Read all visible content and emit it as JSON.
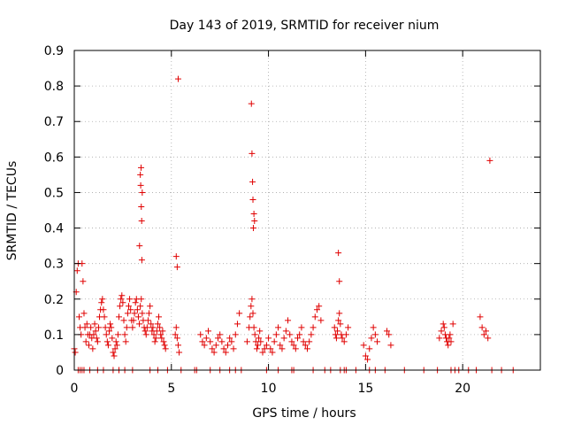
{
  "chart_data": {
    "type": "scatter",
    "title": "Day 143 of 2019, SRMTID for receiver nium",
    "xlabel": "GPS time / hours",
    "ylabel": "SRMTID / TECUs",
    "xlim": [
      0,
      24
    ],
    "ylim": [
      0,
      0.9
    ],
    "x_ticks": [
      0,
      5,
      10,
      15,
      20
    ],
    "y_ticks": [
      0,
      0.1,
      0.2,
      0.3,
      0.4,
      0.5,
      0.6,
      0.7,
      0.8,
      0.9
    ],
    "x_tick_labels": [
      "0",
      "5",
      "10",
      "15",
      "20"
    ],
    "y_tick_labels": [
      "0",
      "0.1",
      "0.2",
      "0.3",
      "0.4",
      "0.5",
      "0.6",
      "0.7",
      "0.8",
      "0.9"
    ],
    "grid": true,
    "marker": "+",
    "series": [
      {
        "name": "SRMTID",
        "color": "#e00000",
        "x": [
          0.0,
          0.05,
          0.1,
          0.15,
          0.2,
          0.25,
          0.3,
          0.35,
          0.4,
          0.45,
          0.5,
          0.55,
          0.6,
          0.65,
          0.7,
          0.75,
          0.8,
          0.85,
          0.9,
          0.95,
          1.0,
          1.05,
          1.1,
          1.15,
          1.2,
          1.25,
          1.3,
          1.35,
          1.4,
          1.45,
          1.5,
          1.55,
          1.6,
          1.65,
          1.7,
          1.75,
          1.8,
          1.85,
          1.9,
          1.95,
          2.0,
          2.05,
          2.1,
          2.15,
          2.2,
          2.25,
          2.3,
          2.35,
          2.4,
          2.45,
          2.5,
          2.55,
          2.6,
          2.65,
          2.7,
          2.75,
          2.8,
          2.85,
          2.9,
          2.95,
          3.0,
          3.05,
          3.1,
          3.15,
          3.2,
          3.25,
          3.3,
          3.35,
          3.4,
          3.45,
          3.5,
          3.55,
          3.6,
          3.65,
          3.7,
          3.75,
          3.8,
          3.85,
          3.9,
          3.95,
          4.0,
          4.05,
          4.1,
          4.15,
          4.2,
          4.25,
          4.3,
          4.35,
          4.4,
          4.45,
          4.5,
          4.55,
          4.6,
          4.65,
          4.7,
          5.2,
          5.25,
          5.3,
          5.35,
          5.4,
          6.5,
          6.6,
          6.7,
          6.8,
          6.9,
          7.0,
          7.1,
          7.2,
          7.3,
          7.4,
          7.5,
          7.6,
          7.7,
          7.8,
          7.9,
          8.0,
          8.1,
          8.2,
          8.3,
          8.4,
          8.5,
          8.9,
          9.0,
          9.05,
          9.1,
          9.15,
          9.2,
          9.25,
          9.3,
          9.35,
          9.4,
          9.45,
          9.5,
          9.55,
          9.6,
          9.7,
          9.8,
          9.9,
          10.0,
          10.1,
          10.2,
          10.3,
          10.4,
          10.5,
          10.6,
          10.7,
          10.8,
          10.9,
          11.0,
          11.1,
          11.2,
          11.3,
          11.4,
          11.5,
          11.6,
          11.7,
          11.8,
          11.9,
          12.0,
          12.1,
          12.2,
          12.3,
          12.4,
          12.5,
          12.6,
          12.7,
          13.4,
          13.45,
          13.5,
          13.55,
          13.6,
          13.65,
          13.7,
          13.75,
          13.8,
          13.9,
          14.0,
          14.1,
          14.9,
          15.0,
          15.1,
          15.2,
          15.3,
          15.4,
          15.5,
          15.6,
          16.1,
          16.2,
          16.3,
          18.8,
          18.9,
          19.0,
          19.05,
          19.1,
          19.15,
          19.2,
          19.25,
          19.3,
          19.35,
          19.4,
          19.5,
          20.9,
          21.0,
          21.1,
          21.2,
          21.3,
          21.4,
          3.4,
          3.42,
          3.45,
          3.47,
          3.5,
          3.44,
          3.48,
          3.36,
          5.25,
          5.3,
          5.35,
          9.12,
          9.15,
          9.18,
          9.2,
          9.25,
          9.28,
          9.22,
          13.6,
          13.65,
          13.7,
          0.2,
          0.3,
          0.4,
          0.5,
          2.3,
          3.0,
          6.2,
          8.3,
          11.2,
          14.0,
          15.5,
          19.6,
          0.8,
          1.2,
          1.5,
          2.0,
          2.6,
          3.9,
          4.3,
          4.8,
          5.5,
          6.3,
          7.0,
          7.5,
          8.0,
          8.6,
          9.9,
          10.5,
          11.3,
          12.3,
          12.9,
          13.2,
          13.9,
          14.5,
          15.2,
          16.0,
          17.0,
          18.0,
          18.7,
          19.4,
          19.8,
          20.3,
          20.7,
          21.5,
          22.0,
          22.6
        ],
        "y": [
          0.06,
          0.05,
          0.22,
          0.28,
          0.3,
          0.15,
          0.12,
          0.1,
          0.3,
          0.25,
          0.16,
          0.12,
          0.08,
          0.13,
          0.1,
          0.07,
          0.1,
          0.12,
          0.09,
          0.06,
          0.1,
          0.13,
          0.11,
          0.09,
          0.08,
          0.12,
          0.15,
          0.17,
          0.19,
          0.2,
          0.17,
          0.15,
          0.12,
          0.1,
          0.08,
          0.07,
          0.11,
          0.13,
          0.12,
          0.09,
          0.05,
          0.04,
          0.06,
          0.08,
          0.07,
          0.1,
          0.15,
          0.18,
          0.2,
          0.21,
          0.19,
          0.14,
          0.1,
          0.08,
          0.12,
          0.16,
          0.18,
          0.2,
          0.17,
          0.14,
          0.12,
          0.14,
          0.16,
          0.19,
          0.2,
          0.17,
          0.15,
          0.13,
          0.18,
          0.2,
          0.16,
          0.14,
          0.12,
          0.11,
          0.1,
          0.12,
          0.14,
          0.16,
          0.18,
          0.13,
          0.11,
          0.12,
          0.1,
          0.08,
          0.09,
          0.11,
          0.13,
          0.15,
          0.12,
          0.1,
          0.09,
          0.11,
          0.08,
          0.07,
          0.06,
          0.1,
          0.12,
          0.09,
          0.07,
          0.05,
          0.1,
          0.08,
          0.07,
          0.09,
          0.11,
          0.08,
          0.06,
          0.05,
          0.07,
          0.09,
          0.1,
          0.08,
          0.06,
          0.05,
          0.07,
          0.09,
          0.08,
          0.06,
          0.1,
          0.13,
          0.16,
          0.08,
          0.12,
          0.15,
          0.18,
          0.2,
          0.16,
          0.12,
          0.1,
          0.08,
          0.06,
          0.07,
          0.09,
          0.11,
          0.08,
          0.05,
          0.06,
          0.07,
          0.09,
          0.06,
          0.05,
          0.08,
          0.1,
          0.12,
          0.07,
          0.06,
          0.09,
          0.11,
          0.14,
          0.1,
          0.08,
          0.07,
          0.06,
          0.09,
          0.1,
          0.12,
          0.08,
          0.07,
          0.06,
          0.08,
          0.1,
          0.12,
          0.15,
          0.17,
          0.18,
          0.14,
          0.12,
          0.1,
          0.09,
          0.11,
          0.14,
          0.16,
          0.13,
          0.1,
          0.09,
          0.08,
          0.1,
          0.12,
          0.07,
          0.04,
          0.03,
          0.06,
          0.09,
          0.12,
          0.1,
          0.08,
          0.11,
          0.1,
          0.07,
          0.09,
          0.11,
          0.13,
          0.12,
          0.1,
          0.09,
          0.08,
          0.07,
          0.09,
          0.1,
          0.08,
          0.13,
          0.15,
          0.12,
          0.1,
          0.11,
          0.09,
          0.59,
          0.55,
          0.52,
          0.46,
          0.42,
          0.5,
          0.57,
          0.31,
          0.35,
          0.32,
          0.29,
          0.82,
          0.75,
          0.61,
          0.53,
          0.48,
          0.44,
          0.42,
          0.4,
          0.33,
          0.25,
          0,
          0,
          0,
          0,
          0,
          0,
          0,
          0,
          0,
          0,
          0,
          0,
          0,
          0,
          0,
          0,
          0,
          0,
          0,
          0,
          0,
          0,
          0,
          0,
          0,
          0,
          0,
          0,
          0,
          0,
          0,
          0,
          0,
          0,
          0,
          0,
          0,
          0,
          0,
          0,
          0,
          0,
          0,
          0,
          0,
          0,
          0
        ]
      }
    ]
  }
}
